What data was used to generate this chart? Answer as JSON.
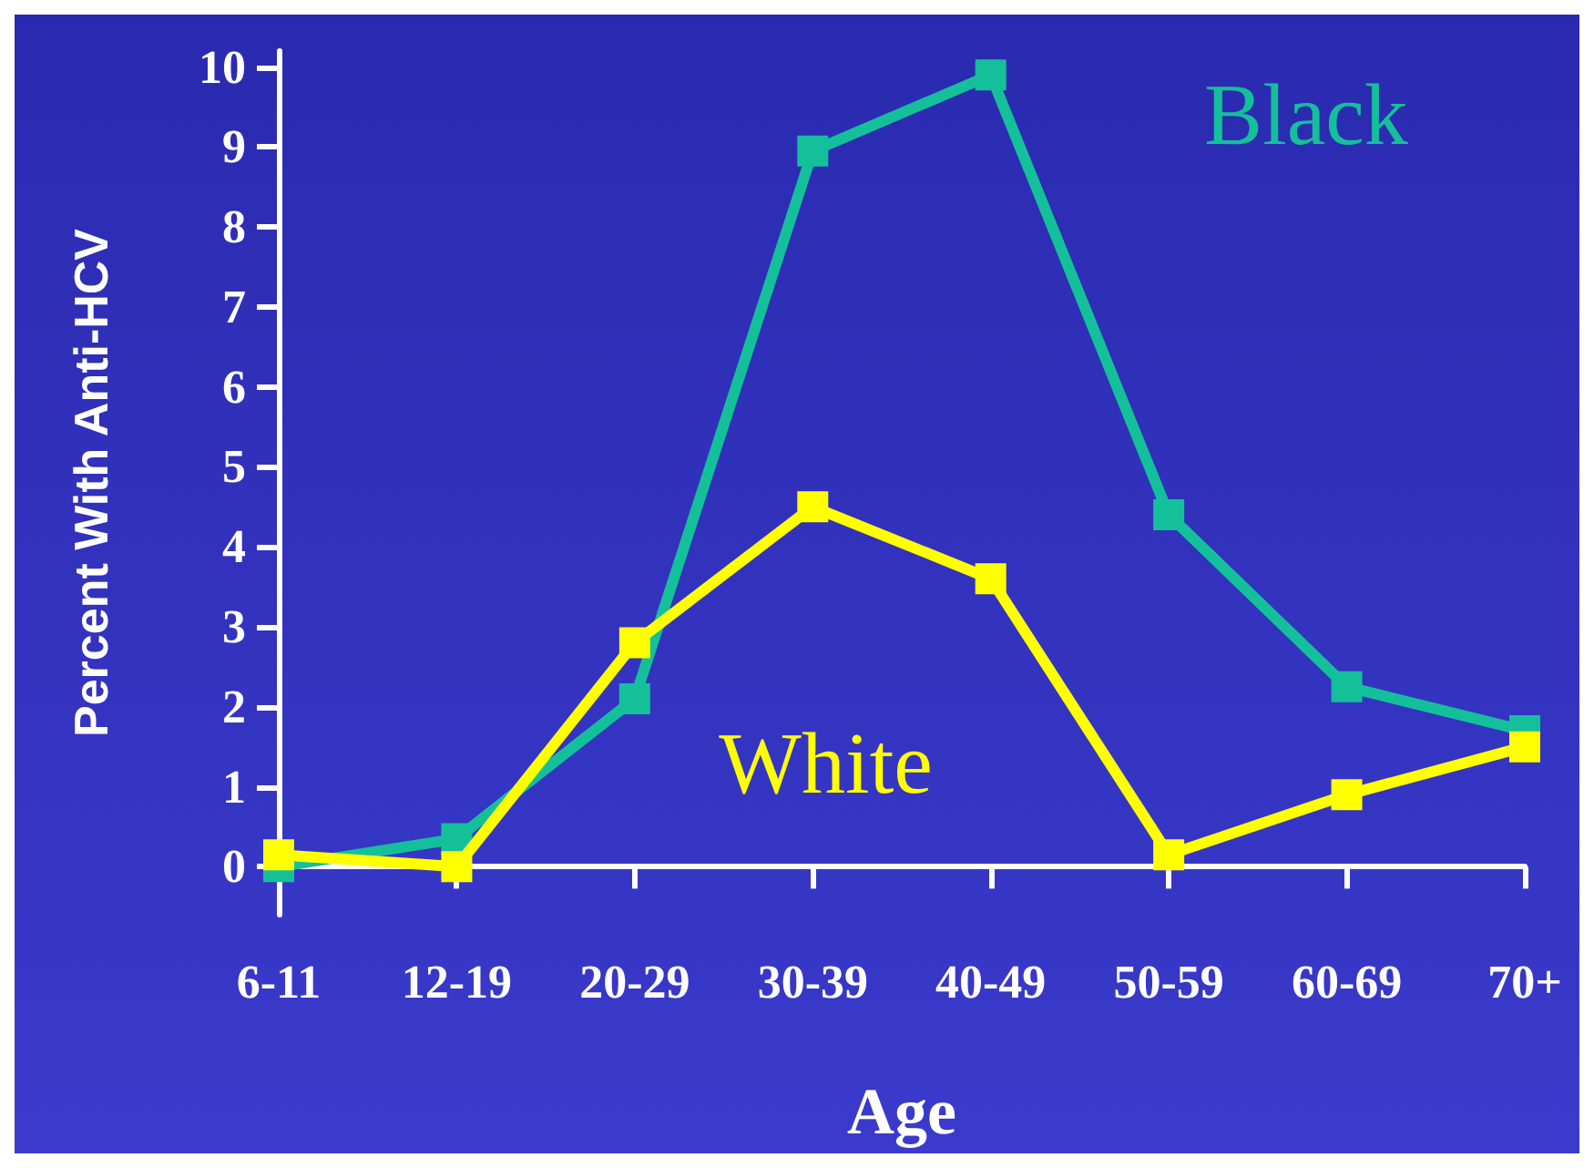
{
  "chart_data": {
    "type": "line",
    "xlabel": "Age",
    "ylabel": "Percent With Anti-HCV",
    "categories": [
      "6-11",
      "12-19",
      "20-29",
      "30-39",
      "40-49",
      "50-59",
      "60-69",
      "70+"
    ],
    "series": [
      {
        "name": "Black",
        "color": "#14c09a",
        "values": [
          0.0,
          0.35,
          2.1,
          8.95,
          9.9,
          4.4,
          2.25,
          1.7
        ]
      },
      {
        "name": "White",
        "color": "#ffff00",
        "values": [
          0.15,
          0.0,
          2.8,
          4.5,
          3.6,
          0.15,
          0.9,
          1.5
        ]
      }
    ],
    "ylim": [
      -0.6,
      10.2
    ],
    "yticks": [
      0,
      1,
      2,
      3,
      4,
      5,
      6,
      7,
      8,
      9,
      10
    ],
    "grid": false,
    "legend": false,
    "marker": "square",
    "line_style": "solid"
  }
}
